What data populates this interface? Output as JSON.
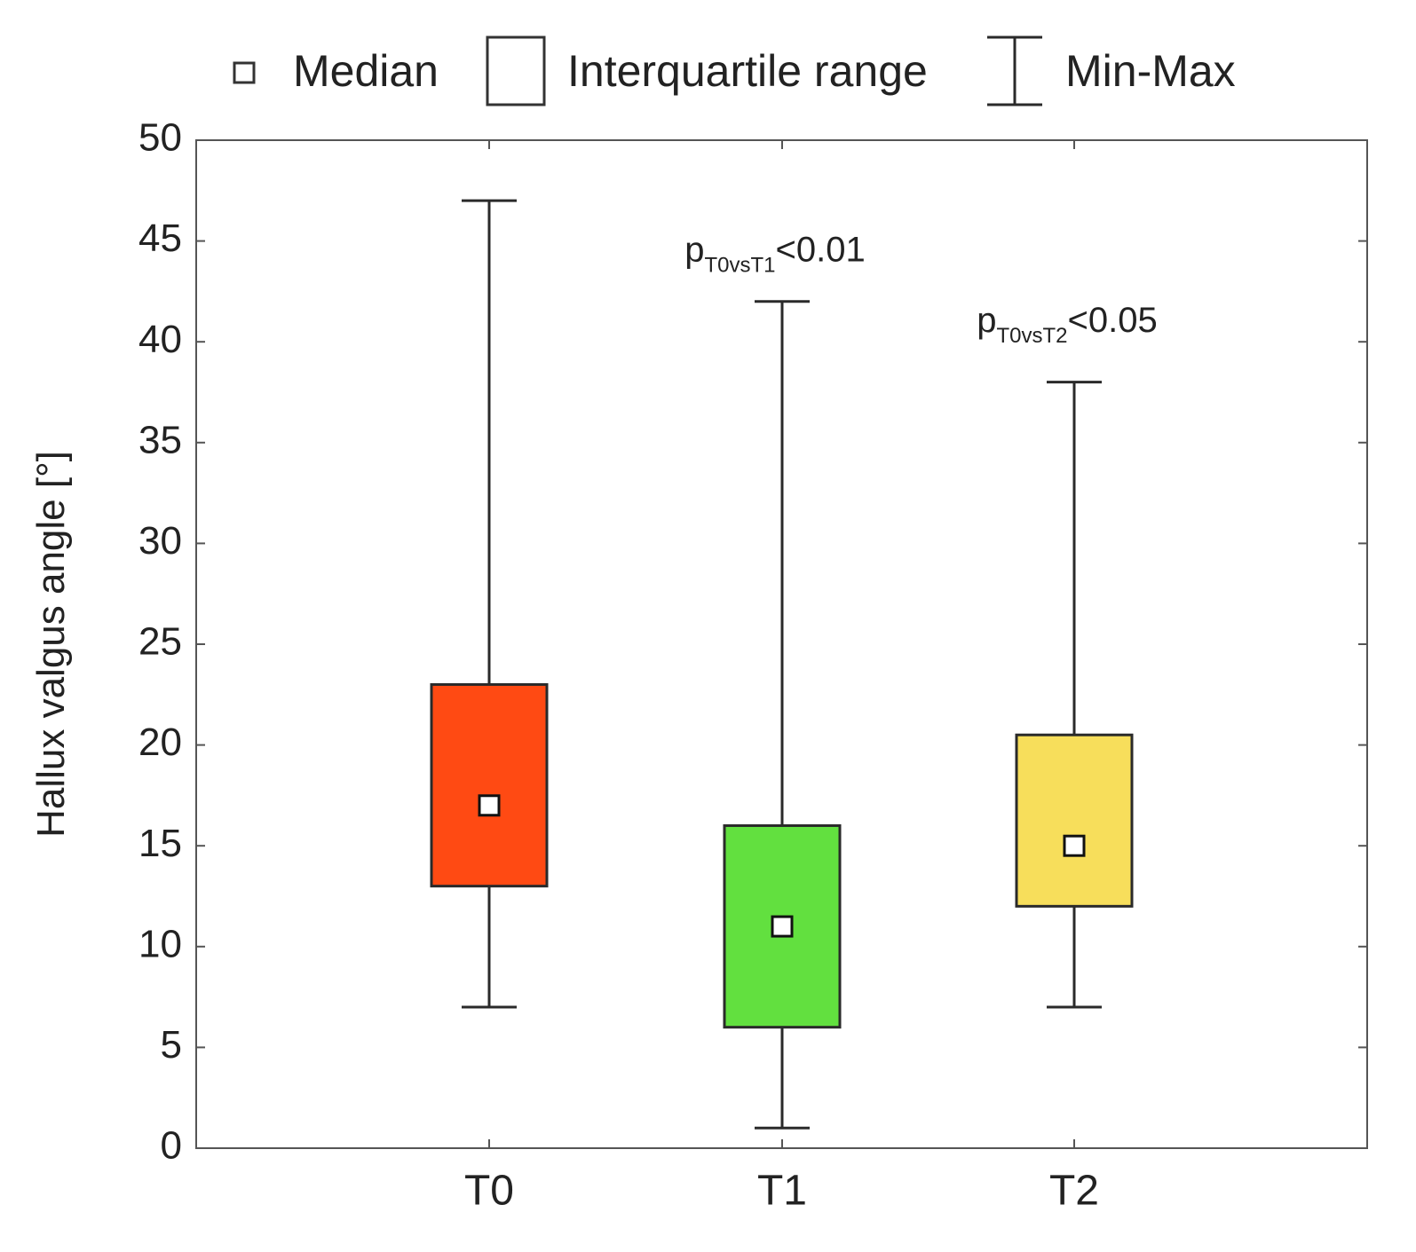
{
  "chart_data": {
    "type": "box",
    "ylabel": "Hallux valgus angle [°]",
    "xlabel": "",
    "ylim": [
      0,
      50
    ],
    "yticks": [
      0,
      5,
      10,
      15,
      20,
      25,
      30,
      35,
      40,
      45,
      50
    ],
    "grid": false,
    "legend": {
      "position": "top",
      "entries": [
        {
          "symbol": "median-marker",
          "label": "Median"
        },
        {
          "symbol": "box",
          "label": "Interquartile range"
        },
        {
          "symbol": "whisker",
          "label": "Min-Max"
        }
      ]
    },
    "categories": [
      "T0",
      "T1",
      "T2"
    ],
    "boxes": [
      {
        "name": "T0",
        "min": 7,
        "q1": 13,
        "median": 17,
        "q3": 23,
        "max": 47,
        "color": "#FF4A13"
      },
      {
        "name": "T1",
        "min": 1,
        "q1": 6,
        "median": 11,
        "q3": 16,
        "max": 42,
        "color": "#62E03F"
      },
      {
        "name": "T2",
        "min": 7,
        "q1": 12,
        "median": 15,
        "q3": 20.5,
        "max": 38,
        "color": "#F7DE5B"
      }
    ],
    "annotations": [
      {
        "category": "T1",
        "prefix": "p",
        "subscript": "T0vsT1",
        "suffix": "<0.01",
        "y": 44
      },
      {
        "category": "T2",
        "prefix": "p",
        "subscript": "T0vsT2",
        "suffix": "<0.05",
        "y": 40.5
      }
    ]
  }
}
